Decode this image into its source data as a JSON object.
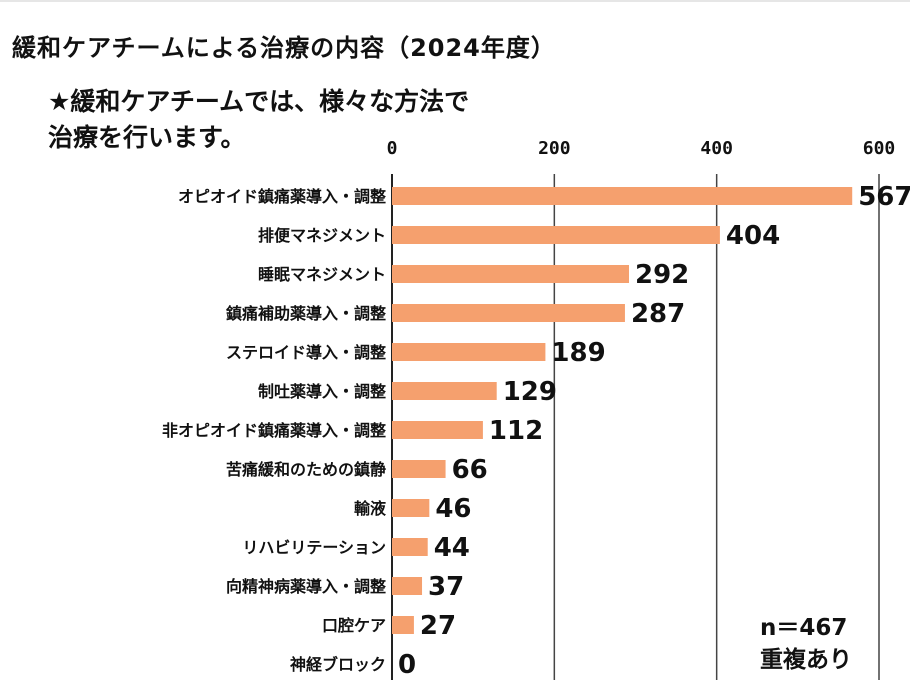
{
  "title": "緩和ケアチームによる治療の内容（2024年度）",
  "subtitle_lines": [
    "★緩和ケアチームでは、様々な方法で",
    "治療を行います。"
  ],
  "note_lines": [
    "n＝467",
    "重複あり"
  ],
  "colors": {
    "bar": "#F5A06E",
    "grid": "#333333",
    "text": "#111111"
  },
  "chart_data": {
    "type": "bar",
    "orientation": "horizontal",
    "title": "緩和ケアチームによる治療の内容（2024年度）",
    "xlim": [
      0,
      600
    ],
    "xticks": [
      0,
      200,
      400,
      600
    ],
    "grid": true,
    "categories": [
      "オピオイド鎮痛薬導入・調整",
      "排便マネジメント",
      "睡眠マネジメント",
      "鎮痛補助薬導入・調整",
      "ステロイド導入・調整",
      "制吐薬導入・調整",
      "非オピオイド鎮痛薬導入・調整",
      "苦痛緩和のための鎮静",
      "輸液",
      "リハビリテーション",
      "向精神病薬導入・調整",
      "口腔ケア",
      "神経ブロック"
    ],
    "values": [
      567,
      404,
      292,
      287,
      189,
      129,
      112,
      66,
      46,
      44,
      37,
      27,
      0
    ]
  }
}
